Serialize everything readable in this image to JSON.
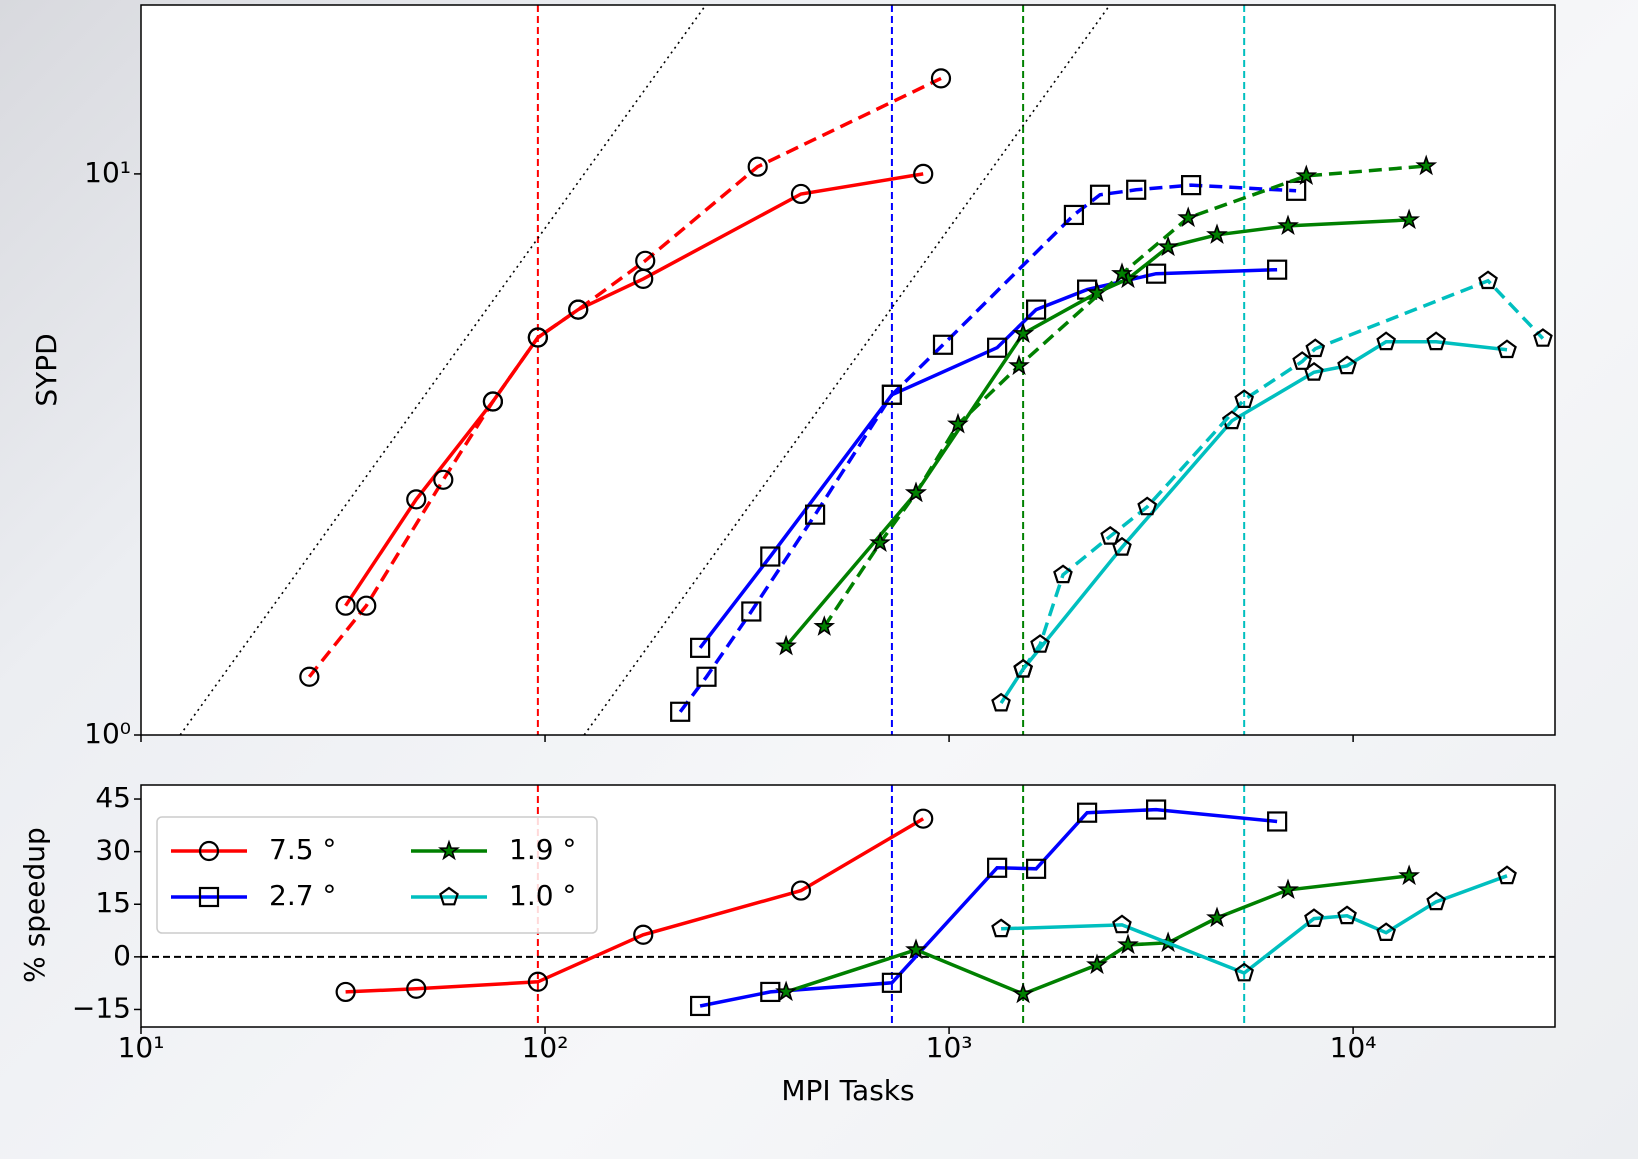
{
  "chart_data": [
    {
      "type": "line",
      "ylabel": "SYPD",
      "xscale": "log",
      "yscale": "log",
      "xlim": [
        10,
        31600
      ],
      "ylim": [
        1,
        20
      ],
      "xticks": [
        10,
        100,
        1000,
        10000
      ],
      "yticks": [
        {
          "value": 1,
          "label": "10⁰"
        },
        {
          "value": 10,
          "label": "10¹"
        }
      ],
      "vlines": [
        {
          "x": 96,
          "color": "#ff0000"
        },
        {
          "x": 722,
          "color": "#0000ff"
        },
        {
          "x": 1525,
          "color": "#008000"
        },
        {
          "x": 5375,
          "color": "#00bfbf"
        }
      ],
      "reference_lines": [
        {
          "x": [
            12.5,
            250
          ],
          "values": [
            1,
            20
          ],
          "color": "#000000"
        },
        {
          "x": [
            125,
            2500
          ],
          "values": [
            1,
            20
          ],
          "color": "#000000"
        }
      ],
      "series": [
        {
          "color": "#ff0000",
          "marker": "circle",
          "linestyle": "solid",
          "x": [
            32.1,
            48,
            74.3,
            96,
            120.8,
            175,
            430,
            863
          ],
          "values": [
            1.7,
            2.63,
            3.93,
            5.11,
            5.73,
            6.5,
            9.21,
            10.0
          ]
        },
        {
          "color": "#ff0000",
          "marker": "circle",
          "linestyle": "dashed",
          "x": [
            26.1,
            36.1,
            56,
            74.3,
            96,
            120.8,
            177,
            336,
            955
          ],
          "values": [
            1.27,
            1.7,
            2.85,
            3.93,
            5.11,
            5.73,
            7.0,
            10.3,
            14.8
          ]
        },
        {
          "color": "#0000ff",
          "marker": "square",
          "linestyle": "solid",
          "x": [
            242,
            361,
            722,
            1315,
            1642,
            2196,
            3254,
            6486
          ],
          "values": [
            1.43,
            2.08,
            4.04,
            4.9,
            5.73,
            6.22,
            6.64,
            6.75
          ]
        },
        {
          "color": "#0000ff",
          "marker": "square",
          "linestyle": "dashed",
          "x": [
            216,
            251,
            324,
            466,
            722,
            966,
            2037,
            2364,
            2905,
            3972,
            7228
          ],
          "values": [
            1.1,
            1.27,
            1.66,
            2.47,
            4.04,
            4.96,
            8.45,
            9.18,
            9.37,
            9.55,
            9.33
          ]
        },
        {
          "color": "#008000",
          "marker": "star",
          "linestyle": "solid",
          "x": [
            395,
            828,
            1525,
            2323,
            2772,
            3484,
            4603,
            6900,
            13760
          ],
          "values": [
            1.44,
            2.7,
            5.19,
            6.14,
            6.5,
            7.41,
            7.79,
            8.08,
            8.28
          ]
        },
        {
          "color": "#008000",
          "marker": "star",
          "linestyle": "dashed",
          "x": [
            491,
            675,
            828,
            1052,
            1490,
            2679,
            3907,
            7657,
            15170
          ],
          "values": [
            1.56,
            2.2,
            2.7,
            3.58,
            4.55,
            6.64,
            8.35,
            9.92,
            10.33
          ]
        },
        {
          "color": "#00bfbf",
          "marker": "pentagon",
          "linestyle": "solid",
          "x": [
            1345,
            1525,
            2679,
            5012,
            8000,
            9660,
            12070,
            16050,
            24040
          ],
          "values": [
            1.14,
            1.31,
            2.16,
            3.63,
            4.43,
            4.55,
            5.02,
            5.02,
            4.86
          ]
        },
        {
          "color": "#00bfbf",
          "marker": "pentagon",
          "linestyle": "dashed",
          "x": [
            1525,
            1680,
            1914,
            2505,
            3093,
            5375,
            7480,
            8060,
            21570,
            29500
          ],
          "values": [
            1.31,
            1.45,
            1.93,
            2.26,
            2.55,
            3.96,
            4.63,
            4.88,
            6.45,
            5.09
          ]
        }
      ]
    },
    {
      "type": "line",
      "ylabel": "% speedup",
      "xlabel": "MPI Tasks",
      "xscale": "log",
      "xlim": [
        10,
        31600
      ],
      "ylim": [
        -20,
        49
      ],
      "hline": 0,
      "xticks": [
        {
          "value": 10,
          "label": "10¹"
        },
        {
          "value": 100,
          "label": "10²"
        },
        {
          "value": 1000,
          "label": "10³"
        },
        {
          "value": 10000,
          "label": "10⁴"
        }
      ],
      "yticks": [
        45,
        30,
        15,
        0,
        {
          "value": -15,
          "label": "−15"
        }
      ],
      "legend": "upper left",
      "series": [
        {
          "name": "7.5 °",
          "color": "#ff0000",
          "marker": "circle",
          "x": [
            32.1,
            48,
            96,
            175,
            430,
            863
          ],
          "values": [
            -10,
            -9.1,
            -7.1,
            6.3,
            18.9,
            39.4
          ]
        },
        {
          "name": "2.7 °",
          "color": "#0000ff",
          "marker": "square",
          "x": [
            242,
            361,
            722,
            1315,
            1642,
            2196,
            3254,
            6486
          ],
          "values": [
            -14,
            -10,
            -7.4,
            25.4,
            25.1,
            41.1,
            42,
            38.6
          ]
        },
        {
          "name": "1.9 °",
          "color": "#008000",
          "marker": "star",
          "x": [
            395,
            828,
            1525,
            2323,
            2772,
            3484,
            4603,
            6900,
            13760
          ],
          "values": [
            -10,
            2,
            -10.6,
            -2.3,
            3.4,
            4,
            11.1,
            19.1,
            23.1
          ]
        },
        {
          "name": "1.0 °",
          "color": "#00bfbf",
          "marker": "pentagon",
          "x": [
            1345,
            2679,
            5375,
            8000,
            9660,
            12070,
            16050,
            24040
          ],
          "values": [
            8,
            9.1,
            -4.6,
            10.9,
            11.7,
            6.9,
            15.7,
            23.1
          ]
        }
      ]
    }
  ]
}
